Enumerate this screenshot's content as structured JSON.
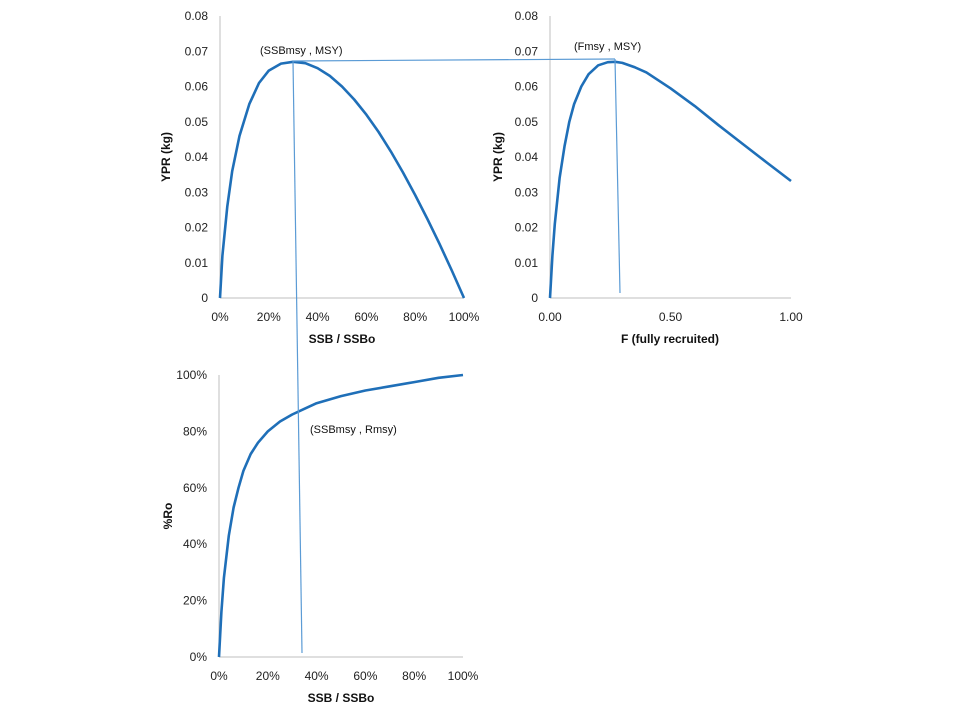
{
  "colors": {
    "curve": "#1f6fb8",
    "guide": "#5b9bd5",
    "axis": "#bfbfbf",
    "text": "#222222"
  },
  "chart_data": [
    {
      "id": "ypr_vs_ssb",
      "type": "line",
      "xlabel": "SSB / SSBo",
      "ylabel": "YPR (kg)",
      "xlim": [
        0,
        1
      ],
      "ylim": [
        0,
        0.08
      ],
      "x_ticks": [
        0,
        0.2,
        0.4,
        0.6,
        0.8,
        1.0
      ],
      "x_tick_labels": [
        "0%",
        "20%",
        "40%",
        "60%",
        "80%",
        "100%"
      ],
      "y_ticks": [
        0,
        0.01,
        0.02,
        0.03,
        0.04,
        0.05,
        0.06,
        0.07,
        0.08
      ],
      "y_tick_labels": [
        "0",
        "0.01",
        "0.02",
        "0.03",
        "0.04",
        "0.05",
        "0.06",
        "0.07",
        "0.08"
      ],
      "grid": false,
      "series": [
        {
          "x": [
            0,
            0.01,
            0.03,
            0.05,
            0.08,
            0.12,
            0.16,
            0.2,
            0.25,
            0.3,
            0.35,
            0.4,
            0.45,
            0.5,
            0.55,
            0.6,
            0.65,
            0.7,
            0.75,
            0.8,
            0.85,
            0.9,
            0.95,
            1.0
          ],
          "y": [
            0,
            0.012,
            0.026,
            0.036,
            0.046,
            0.055,
            0.061,
            0.0645,
            0.0665,
            0.067,
            0.0666,
            0.0652,
            0.063,
            0.06,
            0.0563,
            0.052,
            0.0471,
            0.0416,
            0.0356,
            0.0292,
            0.0224,
            0.0153,
            0.0078,
            0.0
          ]
        }
      ],
      "annotations": [
        {
          "text": "(SSBmsy , MSY)",
          "x": 0.3,
          "y": 0.067
        }
      ]
    },
    {
      "id": "ypr_vs_f",
      "type": "line",
      "xlabel": "F (fully recruited)",
      "ylabel": "YPR (kg)",
      "xlim": [
        0,
        1
      ],
      "ylim": [
        0,
        0.08
      ],
      "x_ticks": [
        0,
        0.5,
        1.0
      ],
      "x_tick_labels": [
        "0.00",
        "0.50",
        "1.00"
      ],
      "y_ticks": [
        0,
        0.01,
        0.02,
        0.03,
        0.04,
        0.05,
        0.06,
        0.07,
        0.08
      ],
      "y_tick_labels": [
        "0",
        "0.01",
        "0.02",
        "0.03",
        "0.04",
        "0.05",
        "0.06",
        "0.07",
        "0.08"
      ],
      "grid": false,
      "series": [
        {
          "x": [
            0,
            0.01,
            0.02,
            0.04,
            0.06,
            0.08,
            0.1,
            0.13,
            0.16,
            0.2,
            0.24,
            0.27,
            0.3,
            0.35,
            0.4,
            0.5,
            0.6,
            0.7,
            0.8,
            0.9,
            1.0
          ],
          "y": [
            0,
            0.012,
            0.021,
            0.034,
            0.043,
            0.05,
            0.055,
            0.06,
            0.0635,
            0.066,
            0.0669,
            0.067,
            0.0667,
            0.0655,
            0.064,
            0.0595,
            0.0545,
            0.049,
            0.0437,
            0.0384,
            0.0332
          ]
        }
      ],
      "annotations": [
        {
          "text": "(Fmsy , MSY)",
          "x": 0.27,
          "y": 0.067
        }
      ]
    },
    {
      "id": "ro_vs_ssb",
      "type": "line",
      "xlabel": "SSB / SSBo",
      "ylabel": "%Ro",
      "xlim": [
        0,
        1
      ],
      "ylim": [
        0,
        1
      ],
      "x_ticks": [
        0,
        0.2,
        0.4,
        0.6,
        0.8,
        1.0
      ],
      "x_tick_labels": [
        "0%",
        "20%",
        "40%",
        "60%",
        "80%",
        "100%"
      ],
      "y_ticks": [
        0,
        0.2,
        0.4,
        0.6,
        0.8,
        1.0
      ],
      "y_tick_labels": [
        "0%",
        "20%",
        "40%",
        "60%",
        "80%",
        "100%"
      ],
      "grid": false,
      "series": [
        {
          "x": [
            0,
            0.01,
            0.02,
            0.04,
            0.06,
            0.08,
            0.1,
            0.13,
            0.16,
            0.2,
            0.25,
            0.3,
            0.35,
            0.4,
            0.5,
            0.6,
            0.7,
            0.8,
            0.9,
            1.0
          ],
          "y": [
            0,
            0.16,
            0.28,
            0.43,
            0.53,
            0.6,
            0.66,
            0.72,
            0.76,
            0.8,
            0.835,
            0.86,
            0.88,
            0.9,
            0.925,
            0.945,
            0.96,
            0.975,
            0.99,
            1.0
          ]
        }
      ],
      "annotations": [
        {
          "text": "(SSBmsy , Rmsy)",
          "x": 0.33,
          "y": 0.86
        }
      ]
    }
  ]
}
